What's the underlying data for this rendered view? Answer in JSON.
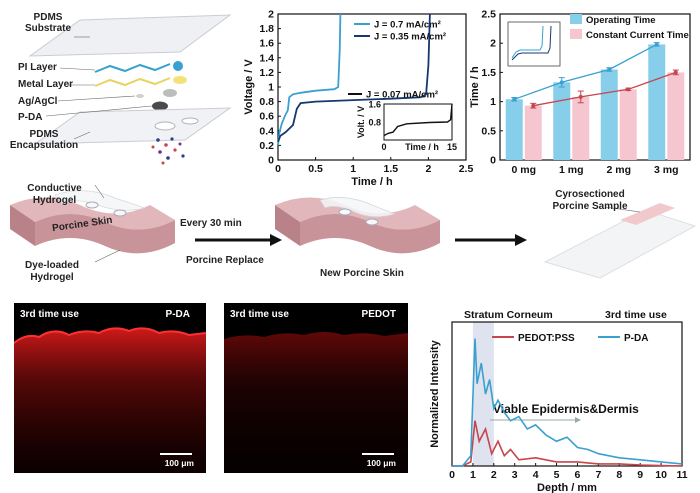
{
  "colors": {
    "skin": "#e2b7bb",
    "skin_dark": "#c99499",
    "blue": "#3aa0d0",
    "pink": "#f2b8c6",
    "red_line": "#c8454d",
    "shade": "#dfe2ef",
    "micro_red": "#d81b1b"
  },
  "panel_a": {
    "labels": {
      "pdms_substrate": "PDMS\nSubstrate",
      "pi_layer": "PI Layer",
      "metal_layer": "Metal Layer",
      "ag_agcl": "Ag/AgCl",
      "p_da": "P-DA",
      "pdms_encapsulation": "PDMS\nEncapsulation"
    }
  },
  "panel_b_procedure": {
    "conductive_hydrogel": "Conductive\nHydrogel",
    "porcine_skin": "Porcine Skin",
    "dye_loaded_hydrogel": "Dye-loaded\nHydrogel",
    "every_30_min": "Every 30 min",
    "porcine_replace": "Porcine Replace",
    "new_porcine_skin": "New Porcine Skin",
    "cyrosectioned_sample": "Cyrosectioned\nPorcine Sample"
  },
  "micrographs": [
    {
      "title": "3rd time use",
      "label": "P-DA",
      "scale": "100 μm"
    },
    {
      "title": "3rd time use",
      "label": "PEDOT",
      "scale": "100 μm"
    }
  ],
  "chart_data": [
    {
      "type": "line",
      "xlabel": "Time / h",
      "ylabel": "Voltage / V",
      "xlim": [
        0,
        2.5
      ],
      "ylim": [
        0,
        2
      ],
      "xticks": [
        0,
        0.5,
        1,
        1.5,
        2,
        2.5
      ],
      "yticks": [
        0,
        0.2,
        0.4,
        0.6,
        0.8,
        1,
        1.2,
        1.4,
        1.6,
        1.8,
        2
      ],
      "legend_position": "top-right",
      "series": [
        {
          "name": "J = 0.7 mA/cm²",
          "color": "#3aa0d0",
          "points": [
            [
              0,
              0.2
            ],
            [
              0.02,
              0.38
            ],
            [
              0.05,
              0.5
            ],
            [
              0.1,
              0.62
            ],
            [
              0.13,
              0.68
            ],
            [
              0.15,
              0.86
            ],
            [
              0.2,
              0.9
            ],
            [
              0.3,
              0.92
            ],
            [
              0.5,
              0.95
            ],
            [
              0.75,
              0.97
            ],
            [
              0.8,
              1.0
            ],
            [
              0.82,
              1.5
            ],
            [
              0.83,
              2.0
            ]
          ]
        },
        {
          "name": "J = 0.35 mA/cm²",
          "color": "#17386e",
          "points": [
            [
              0,
              0.25
            ],
            [
              0.03,
              0.33
            ],
            [
              0.1,
              0.38
            ],
            [
              0.2,
              0.48
            ],
            [
              0.25,
              0.7
            ],
            [
              0.3,
              0.78
            ],
            [
              0.5,
              0.8
            ],
            [
              1.0,
              0.82
            ],
            [
              1.5,
              0.84
            ],
            [
              1.9,
              0.86
            ],
            [
              1.97,
              0.9
            ],
            [
              2.0,
              1.3
            ],
            [
              2.02,
              2.0
            ]
          ]
        }
      ],
      "inset": {
        "xlabel": "Time / h",
        "ylabel": "Volt. / V",
        "xlim": [
          0,
          15
        ],
        "ylim": [
          0,
          1.6
        ],
        "xticks": [
          0,
          15
        ],
        "yticks": [
          0.8,
          1.6
        ],
        "series": [
          {
            "name": "J = 0.07 mA/cm²",
            "color": "#111111",
            "points": [
              [
                0,
                0.2
              ],
              [
                1,
                0.3
              ],
              [
                2,
                0.35
              ],
              [
                3,
                0.6
              ],
              [
                5,
                0.72
              ],
              [
                10,
                0.78
              ],
              [
                14,
                0.8
              ],
              [
                14.7,
                0.9
              ],
              [
                15,
                1.6
              ]
            ]
          }
        ]
      }
    },
    {
      "type": "bar",
      "xlabel": "",
      "ylabel": "Time / h",
      "ylim": [
        0,
        2.5
      ],
      "yticks": [
        0,
        0.5,
        1,
        1.5,
        2,
        2.5
      ],
      "categories": [
        "0 mg",
        "1 mg",
        "2 mg",
        "3 mg"
      ],
      "legend_position": "top-right",
      "series": [
        {
          "name": "Operating Time",
          "color": "#87ceeb",
          "line_color": "#3aa0d0",
          "values": [
            1.04,
            1.33,
            1.55,
            1.98
          ],
          "errors": [
            0.03,
            0.08,
            0.03,
            0.03
          ]
        },
        {
          "name": "Constant Current Time",
          "color": "#f5c6d0",
          "line_color": "#c8454d",
          "values": [
            0.93,
            1.08,
            1.21,
            1.5
          ],
          "errors": [
            0.04,
            0.1,
            0.02,
            0.04
          ]
        }
      ]
    },
    {
      "type": "line",
      "title": "3rd time use",
      "xlabel": "Depth / mm",
      "ylabel": "Normalized Intensity",
      "xlim": [
        0,
        11
      ],
      "xticks": [
        0,
        1,
        2,
        3,
        4,
        5,
        6,
        7,
        8,
        9,
        10,
        11
      ],
      "legend_position": "top-right",
      "annotations": [
        "Stratum Corneum",
        "Viable Epidermis&Dermis"
      ],
      "shaded_region": [
        1,
        2
      ],
      "series": [
        {
          "name": "PEDOT:PSS",
          "color": "#c8454d",
          "points": [
            [
              0,
              0
            ],
            [
              0.5,
              0
            ],
            [
              0.9,
              0.02
            ],
            [
              1.1,
              0.22
            ],
            [
              1.3,
              0.12
            ],
            [
              1.6,
              0.18
            ],
            [
              1.9,
              0.06
            ],
            [
              2.2,
              0.12
            ],
            [
              2.5,
              0.05
            ],
            [
              2.8,
              0.08
            ],
            [
              3.2,
              0.03
            ],
            [
              4,
              0.04
            ],
            [
              5,
              0.02
            ],
            [
              6,
              0.02
            ],
            [
              7,
              0.01
            ],
            [
              8,
              0.01
            ],
            [
              9,
              0.005
            ],
            [
              11,
              0
            ]
          ]
        },
        {
          "name": "P-DA",
          "color": "#3aa0d0",
          "points": [
            [
              0,
              0
            ],
            [
              0.5,
              0
            ],
            [
              0.9,
              0.05
            ],
            [
              1.1,
              0.62
            ],
            [
              1.2,
              0.4
            ],
            [
              1.4,
              0.5
            ],
            [
              1.6,
              0.35
            ],
            [
              1.8,
              0.42
            ],
            [
              2.0,
              0.28
            ],
            [
              2.2,
              0.32
            ],
            [
              2.5,
              0.26
            ],
            [
              2.8,
              0.22
            ],
            [
              3.2,
              0.24
            ],
            [
              3.6,
              0.18
            ],
            [
              4.0,
              0.2
            ],
            [
              4.5,
              0.15
            ],
            [
              5.0,
              0.12
            ],
            [
              5.5,
              0.14
            ],
            [
              6.0,
              0.09
            ],
            [
              6.5,
              0.08
            ],
            [
              7,
              0.06
            ],
            [
              8,
              0.04
            ],
            [
              9,
              0.03
            ],
            [
              10,
              0.02
            ],
            [
              11,
              0.01
            ]
          ]
        }
      ]
    }
  ]
}
